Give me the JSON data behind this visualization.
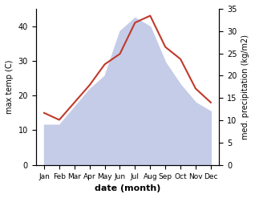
{
  "months": [
    "Jan",
    "Feb",
    "Mar",
    "Apr",
    "May",
    "Jun",
    "Jul",
    "Aug",
    "Sep",
    "Oct",
    "Nov",
    "Dec"
  ],
  "month_x": [
    0,
    1,
    2,
    3,
    4,
    5,
    6,
    7,
    8,
    9,
    10,
    11
  ],
  "temp": [
    15.0,
    13.0,
    18.0,
    23.0,
    29.0,
    32.0,
    41.0,
    43.0,
    34.0,
    30.5,
    22.0,
    18.0
  ],
  "precip": [
    9.0,
    9.0,
    13.0,
    17.0,
    20.0,
    30.0,
    33.0,
    31.0,
    23.0,
    18.0,
    14.0,
    12.0
  ],
  "temp_color": "#c0392b",
  "precip_fill_color": "#c5cce8",
  "precip_edge_color": "#aab4d8",
  "ylabel_left": "max temp (C)",
  "ylabel_right": "med. precipitation (kg/m2)",
  "xlabel": "date (month)",
  "ylim_left": [
    0,
    45
  ],
  "ylim_right": [
    0,
    35
  ],
  "yticks_left": [
    0,
    10,
    20,
    30,
    40
  ],
  "yticks_right": [
    0,
    5,
    10,
    15,
    20,
    25,
    30,
    35
  ],
  "bg_color": "#ffffff",
  "temp_linewidth": 1.5,
  "xlabel_fontsize": 8,
  "ylabel_fontsize": 7,
  "tick_fontsize": 7,
  "xtick_fontsize": 6.5
}
